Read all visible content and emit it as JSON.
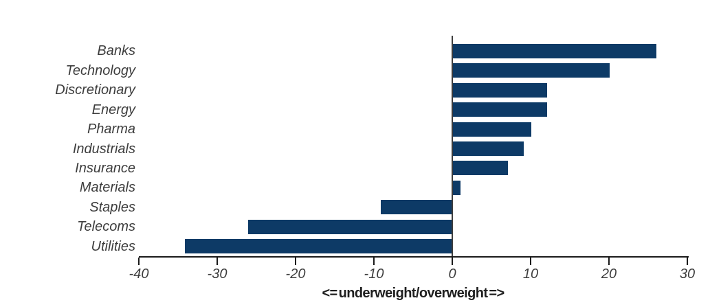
{
  "chart_data": {
    "type": "bar",
    "orientation": "horizontal",
    "title": "",
    "xlabel": "<= underweight/overweight =>",
    "ylabel": "",
    "categories": [
      "Banks",
      "Technology",
      "Discretionary",
      "Energy",
      "Pharma",
      "Industrials",
      "Insurance",
      "Materials",
      "Staples",
      "Telecoms",
      "Utilities"
    ],
    "values": [
      26,
      20,
      12,
      12,
      10,
      9,
      7,
      1,
      -9,
      -26,
      -34
    ],
    "xlim": [
      -40,
      30
    ],
    "xticks": [
      -40,
      -30,
      -20,
      -10,
      0,
      10,
      20,
      30
    ],
    "grid": false,
    "legend": false,
    "zero_baseline": true,
    "colors": {
      "bar": "#0d3a66",
      "axis": "#1a1a1a",
      "zero_line": "#3d3d3d",
      "text": "#3d3d3d",
      "xlabel": "#1f1f1f",
      "background": "#ffffff"
    }
  }
}
